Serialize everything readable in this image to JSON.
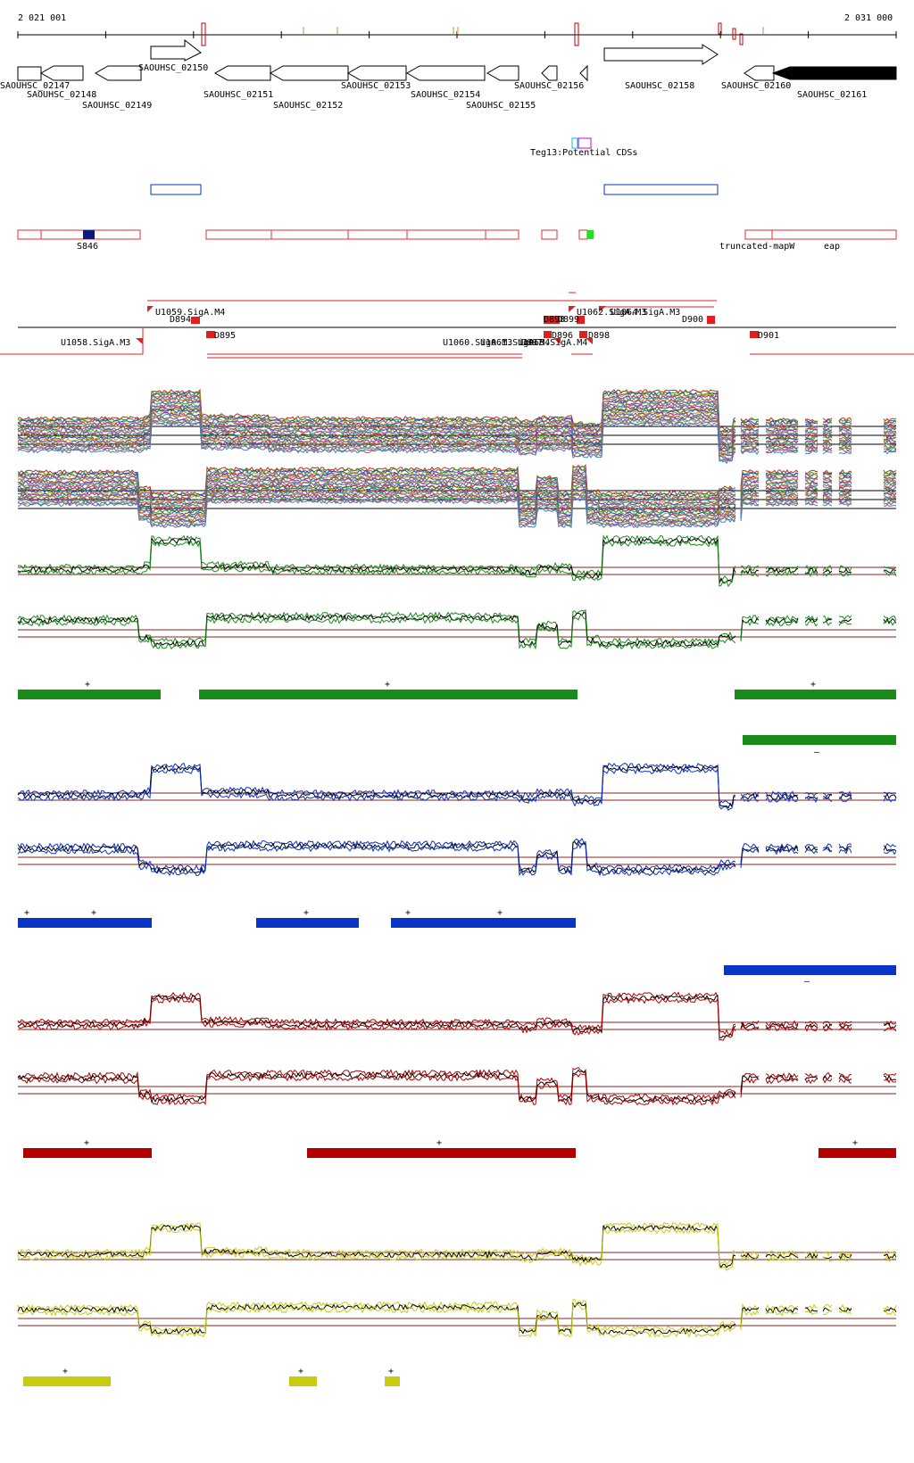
{
  "ruler": {
    "start_label": "2 021 001",
    "end_label": "2 031 000"
  },
  "genes": [
    {
      "label": "SAOUHSC_02147",
      "strand": "+",
      "fill": "#ffffff"
    },
    {
      "label": "SAOUHSC_02148",
      "strand": "-",
      "fill": "#ffffff"
    },
    {
      "label": "SAOUHSC_02149",
      "strand": "-",
      "fill": "#ffffff"
    },
    {
      "label": "SAOUHSC_02150",
      "strand": "+",
      "fill": "#ffffff"
    },
    {
      "label": "SAOUHSC_02151",
      "strand": "-",
      "fill": "#ffffff"
    },
    {
      "label": "SAOUHSC_02152",
      "strand": "-",
      "fill": "#ffffff"
    },
    {
      "label": "SAOUHSC_02153",
      "strand": "-",
      "fill": "#ffffff"
    },
    {
      "label": "SAOUHSC_02154",
      "strand": "-",
      "fill": "#ffffff"
    },
    {
      "label": "SAOUHSC_02155",
      "strand": "-",
      "fill": "#ffffff"
    },
    {
      "label": "SAOUHSC_02156",
      "strand": "-",
      "fill": "#ffffff"
    },
    {
      "label": "SAOUHSC_02158",
      "strand": "+",
      "fill": "#ffffff"
    },
    {
      "label": "SAOUHSC_02160",
      "strand": "-",
      "fill": "#ffffff"
    },
    {
      "label": "SAOUHSC_02161",
      "strand": "-",
      "fill": "#000000"
    }
  ],
  "regulatory": {
    "label": "Teg13:Potential CDSs"
  },
  "annotations": {
    "s_label": "S846",
    "truncated_label": "truncated-mapW",
    "eap_label": "eap"
  },
  "promoters": {
    "labels": [
      "U1059.SigA.M4",
      "D894",
      "D895",
      "U1058.SigA.M3",
      "D898",
      "D899",
      "U1062.SigA.M3",
      "U1064.SigA.M3",
      "D900",
      "D896",
      "D897",
      "D898",
      "D901",
      "U1060.SigA.M3",
      "U1061.SigA.M4",
      "U1063.SigA.M4"
    ]
  },
  "colors": {
    "green": "#1a8c1a",
    "blue": "#0a33c8",
    "red": "#b50000",
    "yellow": "#c8cc10",
    "dark": "#000000",
    "threshold": "#8b2020"
  },
  "tracks": [
    {
      "name": "green",
      "segments_plus": [
        "+",
        "+",
        "+"
      ],
      "segments_minus": [
        "–"
      ]
    },
    {
      "name": "blue",
      "segments_plus": [
        "+",
        "+",
        "+",
        "+",
        "+"
      ],
      "segments_minus": [
        "–"
      ]
    },
    {
      "name": "red",
      "segments_plus": [
        "+",
        "+",
        "+"
      ],
      "segments_minus": []
    },
    {
      "name": "yellow",
      "segments_plus": [
        "+",
        "+",
        "+"
      ],
      "segments_minus": []
    }
  ]
}
